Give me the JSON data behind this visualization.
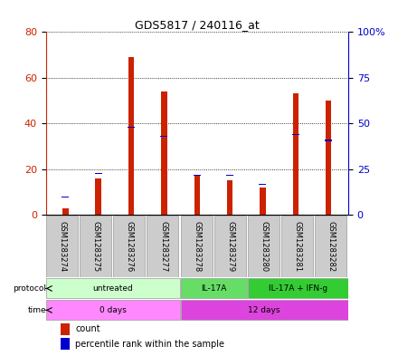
{
  "title": "GDS5817 / 240116_at",
  "samples": [
    "GSM1283274",
    "GSM1283275",
    "GSM1283276",
    "GSM1283277",
    "GSM1283278",
    "GSM1283279",
    "GSM1283280",
    "GSM1283281",
    "GSM1283282"
  ],
  "counts": [
    3,
    16,
    69,
    54,
    17,
    15,
    12,
    53,
    50
  ],
  "percentiles": [
    10,
    23,
    48,
    43,
    22,
    22,
    17,
    44,
    41
  ],
  "left_ylim": [
    0,
    80
  ],
  "right_ylim": [
    0,
    100
  ],
  "left_yticks": [
    0,
    20,
    40,
    60,
    80
  ],
  "right_yticks": [
    0,
    25,
    50,
    75,
    100
  ],
  "right_yticklabels": [
    "0",
    "25",
    "50",
    "75",
    "100%"
  ],
  "protocols": [
    {
      "label": "untreated",
      "start": 0,
      "end": 4,
      "color": "#ccffcc"
    },
    {
      "label": "IL-17A",
      "start": 4,
      "end": 6,
      "color": "#66dd66"
    },
    {
      "label": "IL-17A + IFN-g",
      "start": 6,
      "end": 9,
      "color": "#33cc33"
    }
  ],
  "times": [
    {
      "label": "0 days",
      "start": 0,
      "end": 4,
      "color": "#ff88ff"
    },
    {
      "label": "12 days",
      "start": 4,
      "end": 9,
      "color": "#dd44dd"
    }
  ],
  "bar_color": "#cc2200",
  "percentile_color": "#0000cc",
  "grid_color": "#000000",
  "sample_box_color": "#cccccc",
  "bar_width": 0.18,
  "pct_marker_size": 0.22
}
